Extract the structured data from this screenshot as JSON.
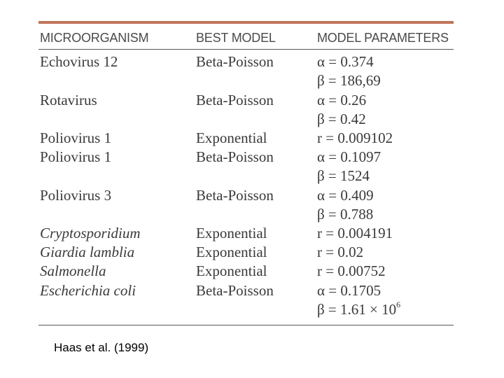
{
  "table": {
    "headers": {
      "organism": "MICROORGANISM",
      "model": "BEST MODEL",
      "params": "MODEL PARAMETERS"
    },
    "rows": [
      {
        "organism": "Echovirus 12",
        "model": "Beta-Poisson",
        "param": "α = 0.374",
        "italic": false
      },
      {
        "organism": "",
        "model": "",
        "param": "β = 186,69",
        "italic": false
      },
      {
        "organism": "Rotavirus",
        "model": "Beta-Poisson",
        "param": "α = 0.26",
        "italic": false
      },
      {
        "organism": "",
        "model": "",
        "param": "β = 0.42",
        "italic": false
      },
      {
        "organism": "Poliovirus 1",
        "model": "Exponential",
        "param": "r = 0.009102",
        "italic": false
      },
      {
        "organism": "Poliovirus 1",
        "model": "Beta-Poisson",
        "param": "α = 0.1097",
        "italic": false
      },
      {
        "organism": "",
        "model": "",
        "param": "β = 1524",
        "italic": false
      },
      {
        "organism": "Poliovirus 3",
        "model": "Beta-Poisson",
        "param": "α = 0.409",
        "italic": false
      },
      {
        "organism": "",
        "model": "",
        "param": "β = 0.788",
        "italic": false
      },
      {
        "organism": "Cryptosporidium",
        "model": "Exponential",
        "param": "r = 0.004191",
        "italic": true
      },
      {
        "organism": "Giardia lamblia",
        "model": "Exponential",
        "param": "r = 0.02",
        "italic": true
      },
      {
        "organism": "Salmonella",
        "model": "Exponential",
        "param": "r = 0.00752",
        "italic": true
      },
      {
        "organism": "Escherichia coli",
        "model": "Beta-Poisson",
        "param": "α = 0.1705",
        "italic": true
      },
      {
        "organism": "",
        "model": "",
        "param": "β = 1.61 × 10",
        "param_sup": "6",
        "italic": false
      }
    ]
  },
  "citation": "Haas et al. (1999)",
  "colors": {
    "top_rule": "#c0745a",
    "text": "#3a3a3a"
  }
}
